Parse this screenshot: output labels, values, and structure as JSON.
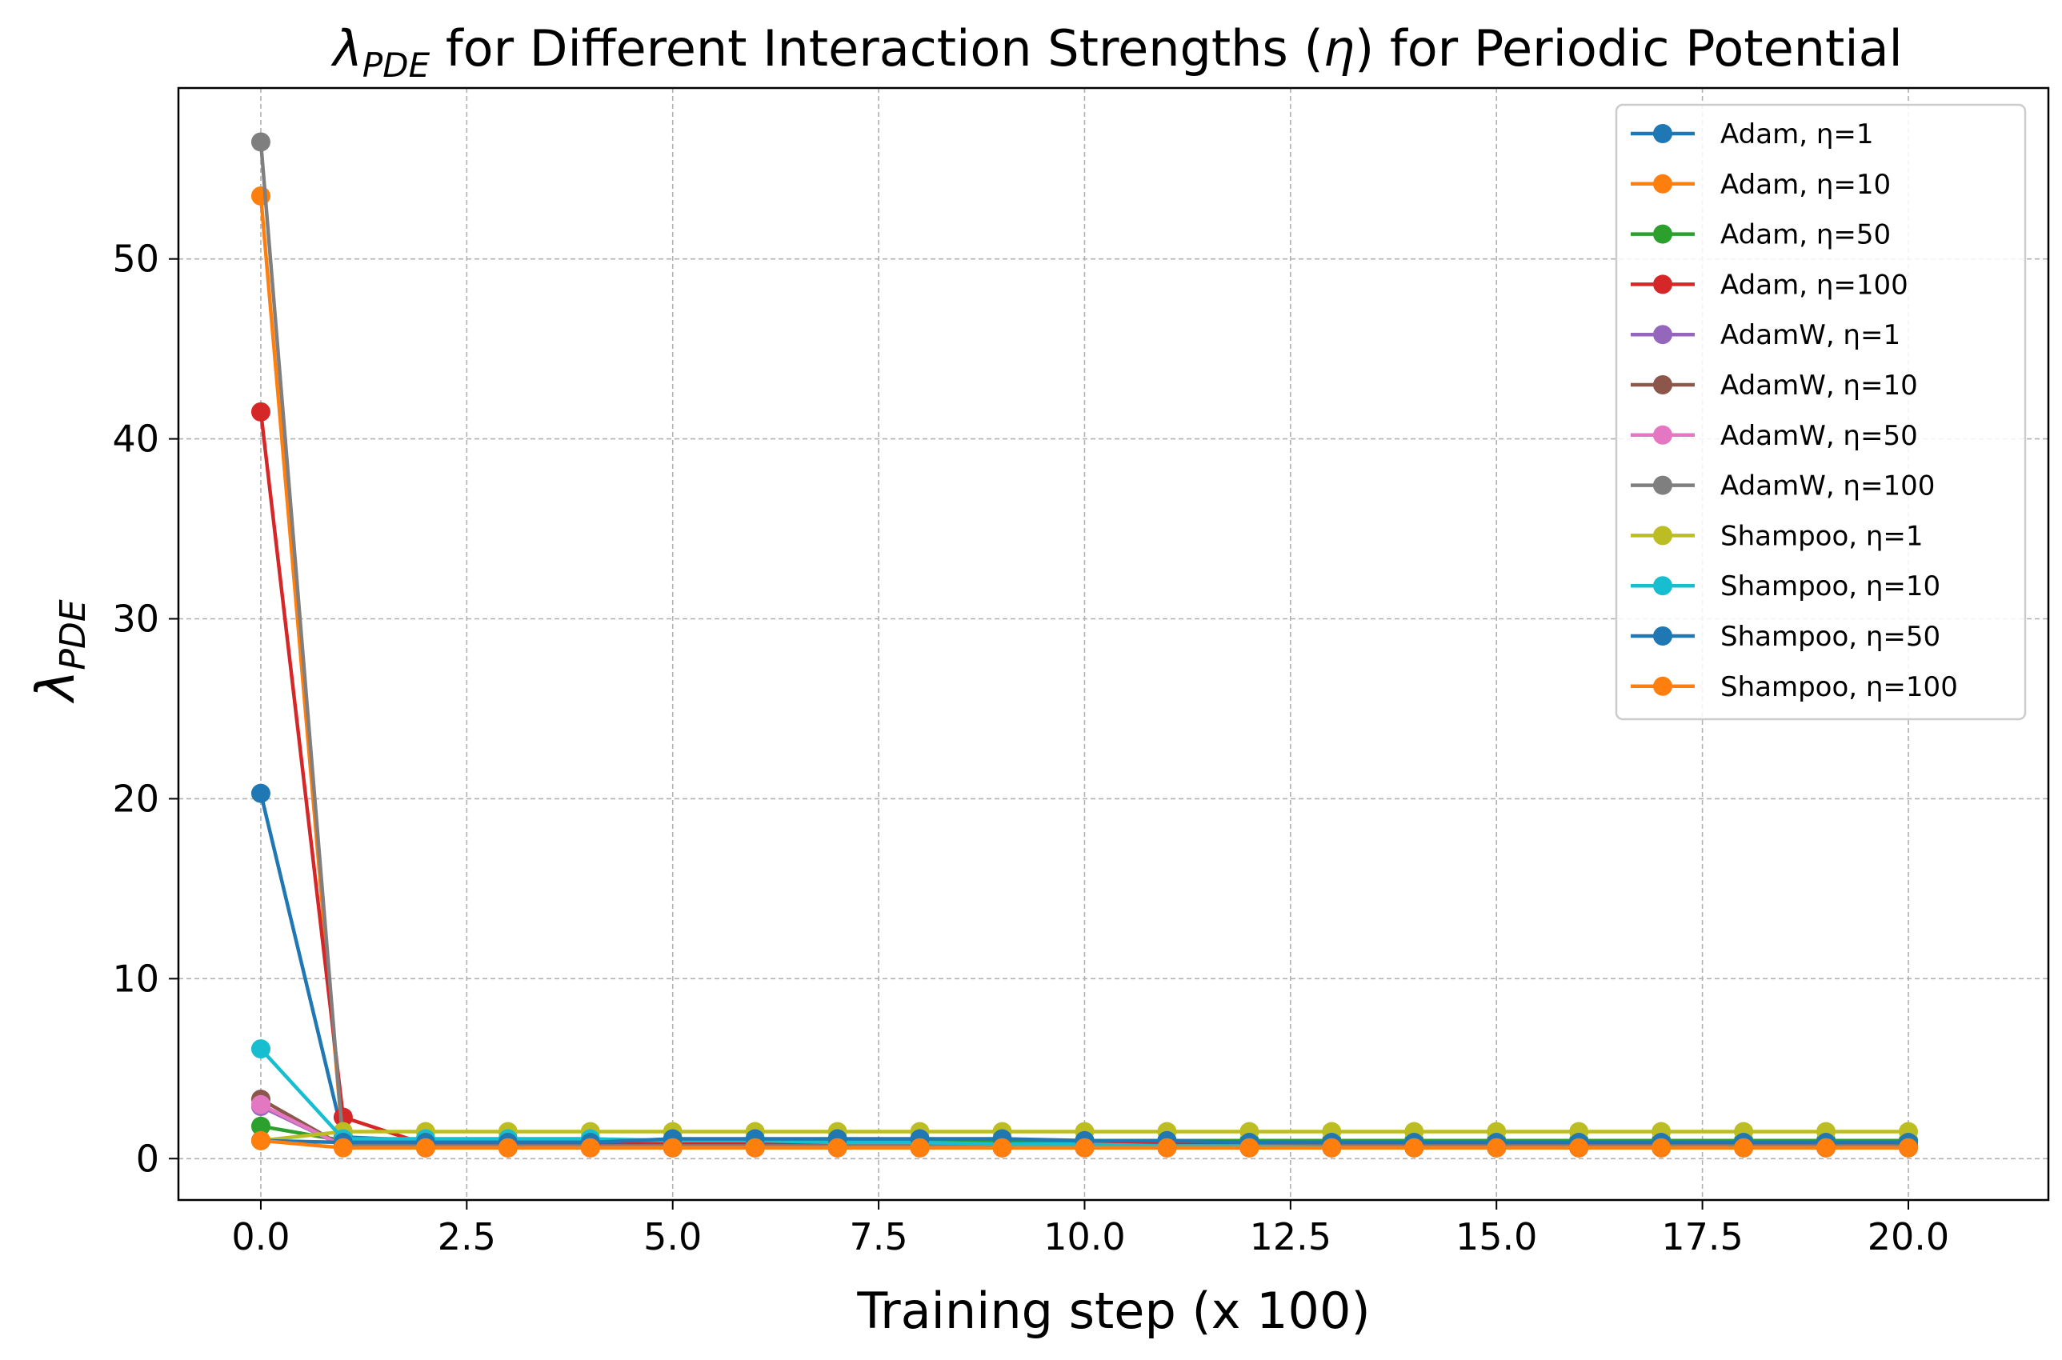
{
  "chart_data": {
    "type": "line",
    "title": {
      "lambda": "λ",
      "sub": "PDE",
      "mid": " for Different Interaction Strengths (",
      "eta": "η",
      "end": ") for Periodic Potential"
    },
    "xlabel": "Training step (x 100)",
    "ylabel": {
      "lambda": "λ",
      "sub": "PDE"
    },
    "xlim": [
      -1,
      21.7
    ],
    "ylim": [
      -2.3,
      59.5
    ],
    "xticks": [
      0.0,
      2.5,
      5.0,
      7.5,
      10.0,
      12.5,
      15.0,
      17.5,
      20.0
    ],
    "xtick_labels": [
      "0.0",
      "2.5",
      "5.0",
      "7.5",
      "10.0",
      "12.5",
      "15.0",
      "17.5",
      "20.0"
    ],
    "yticks": [
      0,
      10,
      20,
      30,
      40,
      50
    ],
    "ytick_labels": [
      "0",
      "10",
      "20",
      "30",
      "40",
      "50"
    ],
    "grid": true,
    "legend_position": "top-right",
    "x": [
      0,
      1,
      2,
      3,
      4,
      5,
      6,
      7,
      8,
      9,
      10,
      11,
      12,
      13,
      14,
      15,
      16,
      17,
      18,
      19,
      20
    ],
    "series": [
      {
        "name": "Adam, η=1",
        "color": "#1f77b4",
        "values": [
          20.3,
          1.2,
          1.0,
          1.0,
          1.0,
          1.0,
          1.0,
          1.0,
          1.0,
          1.0,
          1.0,
          1.0,
          1.0,
          1.0,
          1.0,
          1.0,
          1.0,
          1.0,
          1.0,
          1.0,
          1.0
        ]
      },
      {
        "name": "Adam, η=10",
        "color": "#ff7f0e",
        "values": [
          53.5,
          0.7,
          0.7,
          0.7,
          0.7,
          0.7,
          0.7,
          0.7,
          0.7,
          0.7,
          0.7,
          0.7,
          0.7,
          0.7,
          0.7,
          0.7,
          0.7,
          0.7,
          0.7,
          0.7,
          0.7
        ]
      },
      {
        "name": "Adam, η=50",
        "color": "#2ca02c",
        "values": [
          1.8,
          1.0,
          1.0,
          1.0,
          1.0,
          1.0,
          1.0,
          1.0,
          1.0,
          1.0,
          1.0,
          1.0,
          1.0,
          1.0,
          1.0,
          1.0,
          1.0,
          1.0,
          1.0,
          1.0,
          1.0
        ]
      },
      {
        "name": "Adam, η=100",
        "color": "#d62728",
        "values": [
          41.5,
          2.3,
          0.8,
          0.8,
          0.8,
          0.8,
          0.8,
          0.8,
          0.8,
          0.8,
          0.8,
          0.8,
          0.8,
          0.8,
          0.8,
          0.8,
          0.8,
          0.8,
          0.8,
          0.8,
          0.8
        ]
      },
      {
        "name": "AdamW, η=1",
        "color": "#9467bd",
        "values": [
          2.9,
          0.7,
          0.6,
          0.6,
          0.6,
          0.6,
          0.6,
          0.6,
          0.6,
          0.6,
          0.6,
          0.6,
          0.6,
          0.6,
          0.6,
          0.6,
          0.6,
          0.6,
          0.6,
          0.6,
          0.6
        ]
      },
      {
        "name": "AdamW, η=10",
        "color": "#8c564b",
        "values": [
          3.3,
          0.7,
          0.6,
          0.6,
          0.6,
          0.6,
          0.6,
          0.6,
          0.6,
          0.6,
          0.6,
          0.6,
          0.6,
          0.6,
          0.6,
          0.6,
          0.6,
          0.6,
          0.6,
          0.6,
          0.6
        ]
      },
      {
        "name": "AdamW, η=50",
        "color": "#e377c2",
        "values": [
          3.0,
          0.7,
          0.6,
          0.6,
          0.6,
          0.6,
          0.6,
          0.6,
          0.6,
          0.6,
          0.6,
          0.6,
          0.6,
          0.6,
          0.6,
          0.6,
          0.6,
          0.6,
          0.6,
          0.6,
          0.6
        ]
      },
      {
        "name": "AdamW, η=100",
        "color": "#7f7f7f",
        "values": [
          56.5,
          0.8,
          0.7,
          0.7,
          0.7,
          0.7,
          0.7,
          0.7,
          0.7,
          0.7,
          0.7,
          0.7,
          0.7,
          0.7,
          0.7,
          0.7,
          0.7,
          0.7,
          0.7,
          0.7,
          0.7
        ]
      },
      {
        "name": "Shampoo, η=1",
        "color": "#bcbd22",
        "values": [
          1.0,
          1.5,
          1.5,
          1.5,
          1.5,
          1.5,
          1.5,
          1.5,
          1.5,
          1.5,
          1.5,
          1.5,
          1.5,
          1.5,
          1.5,
          1.5,
          1.5,
          1.5,
          1.5,
          1.5,
          1.5
        ]
      },
      {
        "name": "Shampoo, η=10",
        "color": "#17becf",
        "values": [
          6.1,
          1.1,
          1.1,
          1.1,
          1.1,
          1.0,
          1.0,
          0.9,
          0.9,
          0.8,
          0.8,
          0.7,
          0.7,
          0.6,
          0.6,
          0.6,
          0.6,
          0.6,
          0.6,
          0.6,
          0.6
        ]
      },
      {
        "name": "Shampoo, η=50",
        "color": "#1f77b4",
        "values": [
          1.0,
          0.9,
          0.9,
          0.9,
          0.9,
          1.1,
          1.1,
          1.1,
          1.1,
          1.1,
          1.0,
          1.0,
          0.9,
          0.9,
          0.9,
          0.9,
          0.9,
          0.9,
          0.9,
          0.9,
          0.9
        ]
      },
      {
        "name": "Shampoo, η=100",
        "color": "#ff7f0e",
        "values": [
          1.0,
          0.6,
          0.6,
          0.6,
          0.6,
          0.6,
          0.6,
          0.6,
          0.6,
          0.6,
          0.6,
          0.6,
          0.6,
          0.6,
          0.6,
          0.6,
          0.6,
          0.6,
          0.6,
          0.6,
          0.6
        ]
      }
    ]
  }
}
